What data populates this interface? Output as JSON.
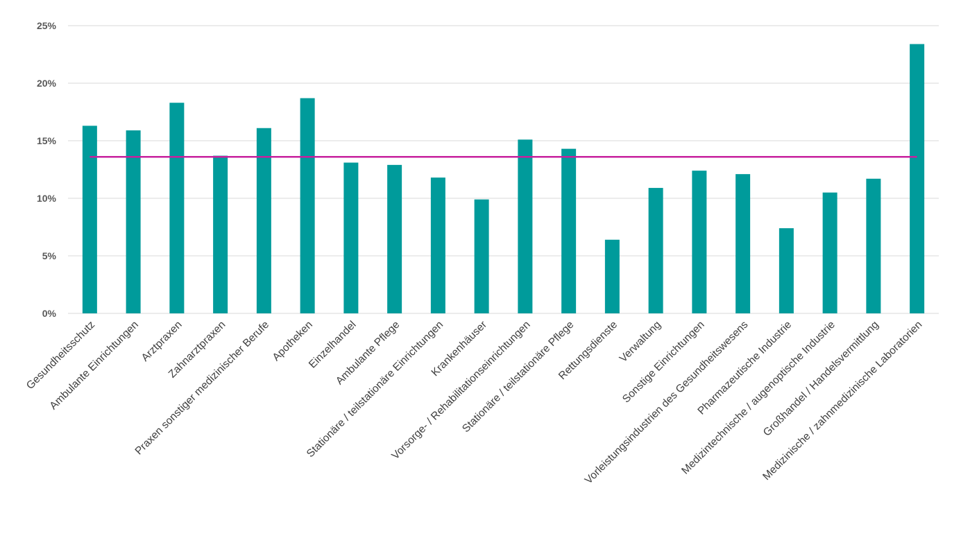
{
  "chart_data": {
    "type": "bar",
    "categories": [
      "Gesundheitsschutz",
      "Ambulante Einrichtungen",
      "Arztpraxen",
      "Zahnarztpraxen",
      "Praxen sonstiger medizinischer Berufe",
      "Apotheken",
      "Einzelhandel",
      "Ambulante Pflege",
      "Stationäre / teilstationäre Einrichtungen",
      "Krankenhäuser",
      "Vorsorge- / Rehabilitationseinrichtungen",
      "Stationäre / teilstationäre Pflege",
      "Rettungsdienste",
      "Verwaltung",
      "Sonstige Einrichtungen",
      "Vorleistungsindustrien des Gesundheitswesens",
      "Pharmazeutische Industrie",
      "Medizintechnische / augenoptische Industrie",
      "Großhandel / Handelsvermittlung",
      "Medizinische / zahnmedizinische Laboratorien"
    ],
    "values": [
      16.3,
      15.9,
      18.3,
      13.7,
      16.1,
      18.7,
      13.1,
      12.9,
      11.8,
      9.9,
      15.1,
      14.3,
      6.4,
      10.9,
      12.4,
      12.1,
      7.4,
      10.5,
      11.7,
      23.4
    ],
    "reference_line": 13.6,
    "ylim": [
      0,
      25
    ],
    "yticks": [
      "0%",
      "5%",
      "10%",
      "15%",
      "20%",
      "25%"
    ],
    "ytick_values": [
      0,
      5,
      10,
      15,
      20,
      25
    ],
    "title": "",
    "xlabel": "",
    "ylabel": "",
    "grid": true,
    "legend": "none",
    "colors": {
      "bar": "#009B9B",
      "reference_line": "#C7209E",
      "grid": "#D9D9D9",
      "tick_text": "#595959"
    }
  }
}
